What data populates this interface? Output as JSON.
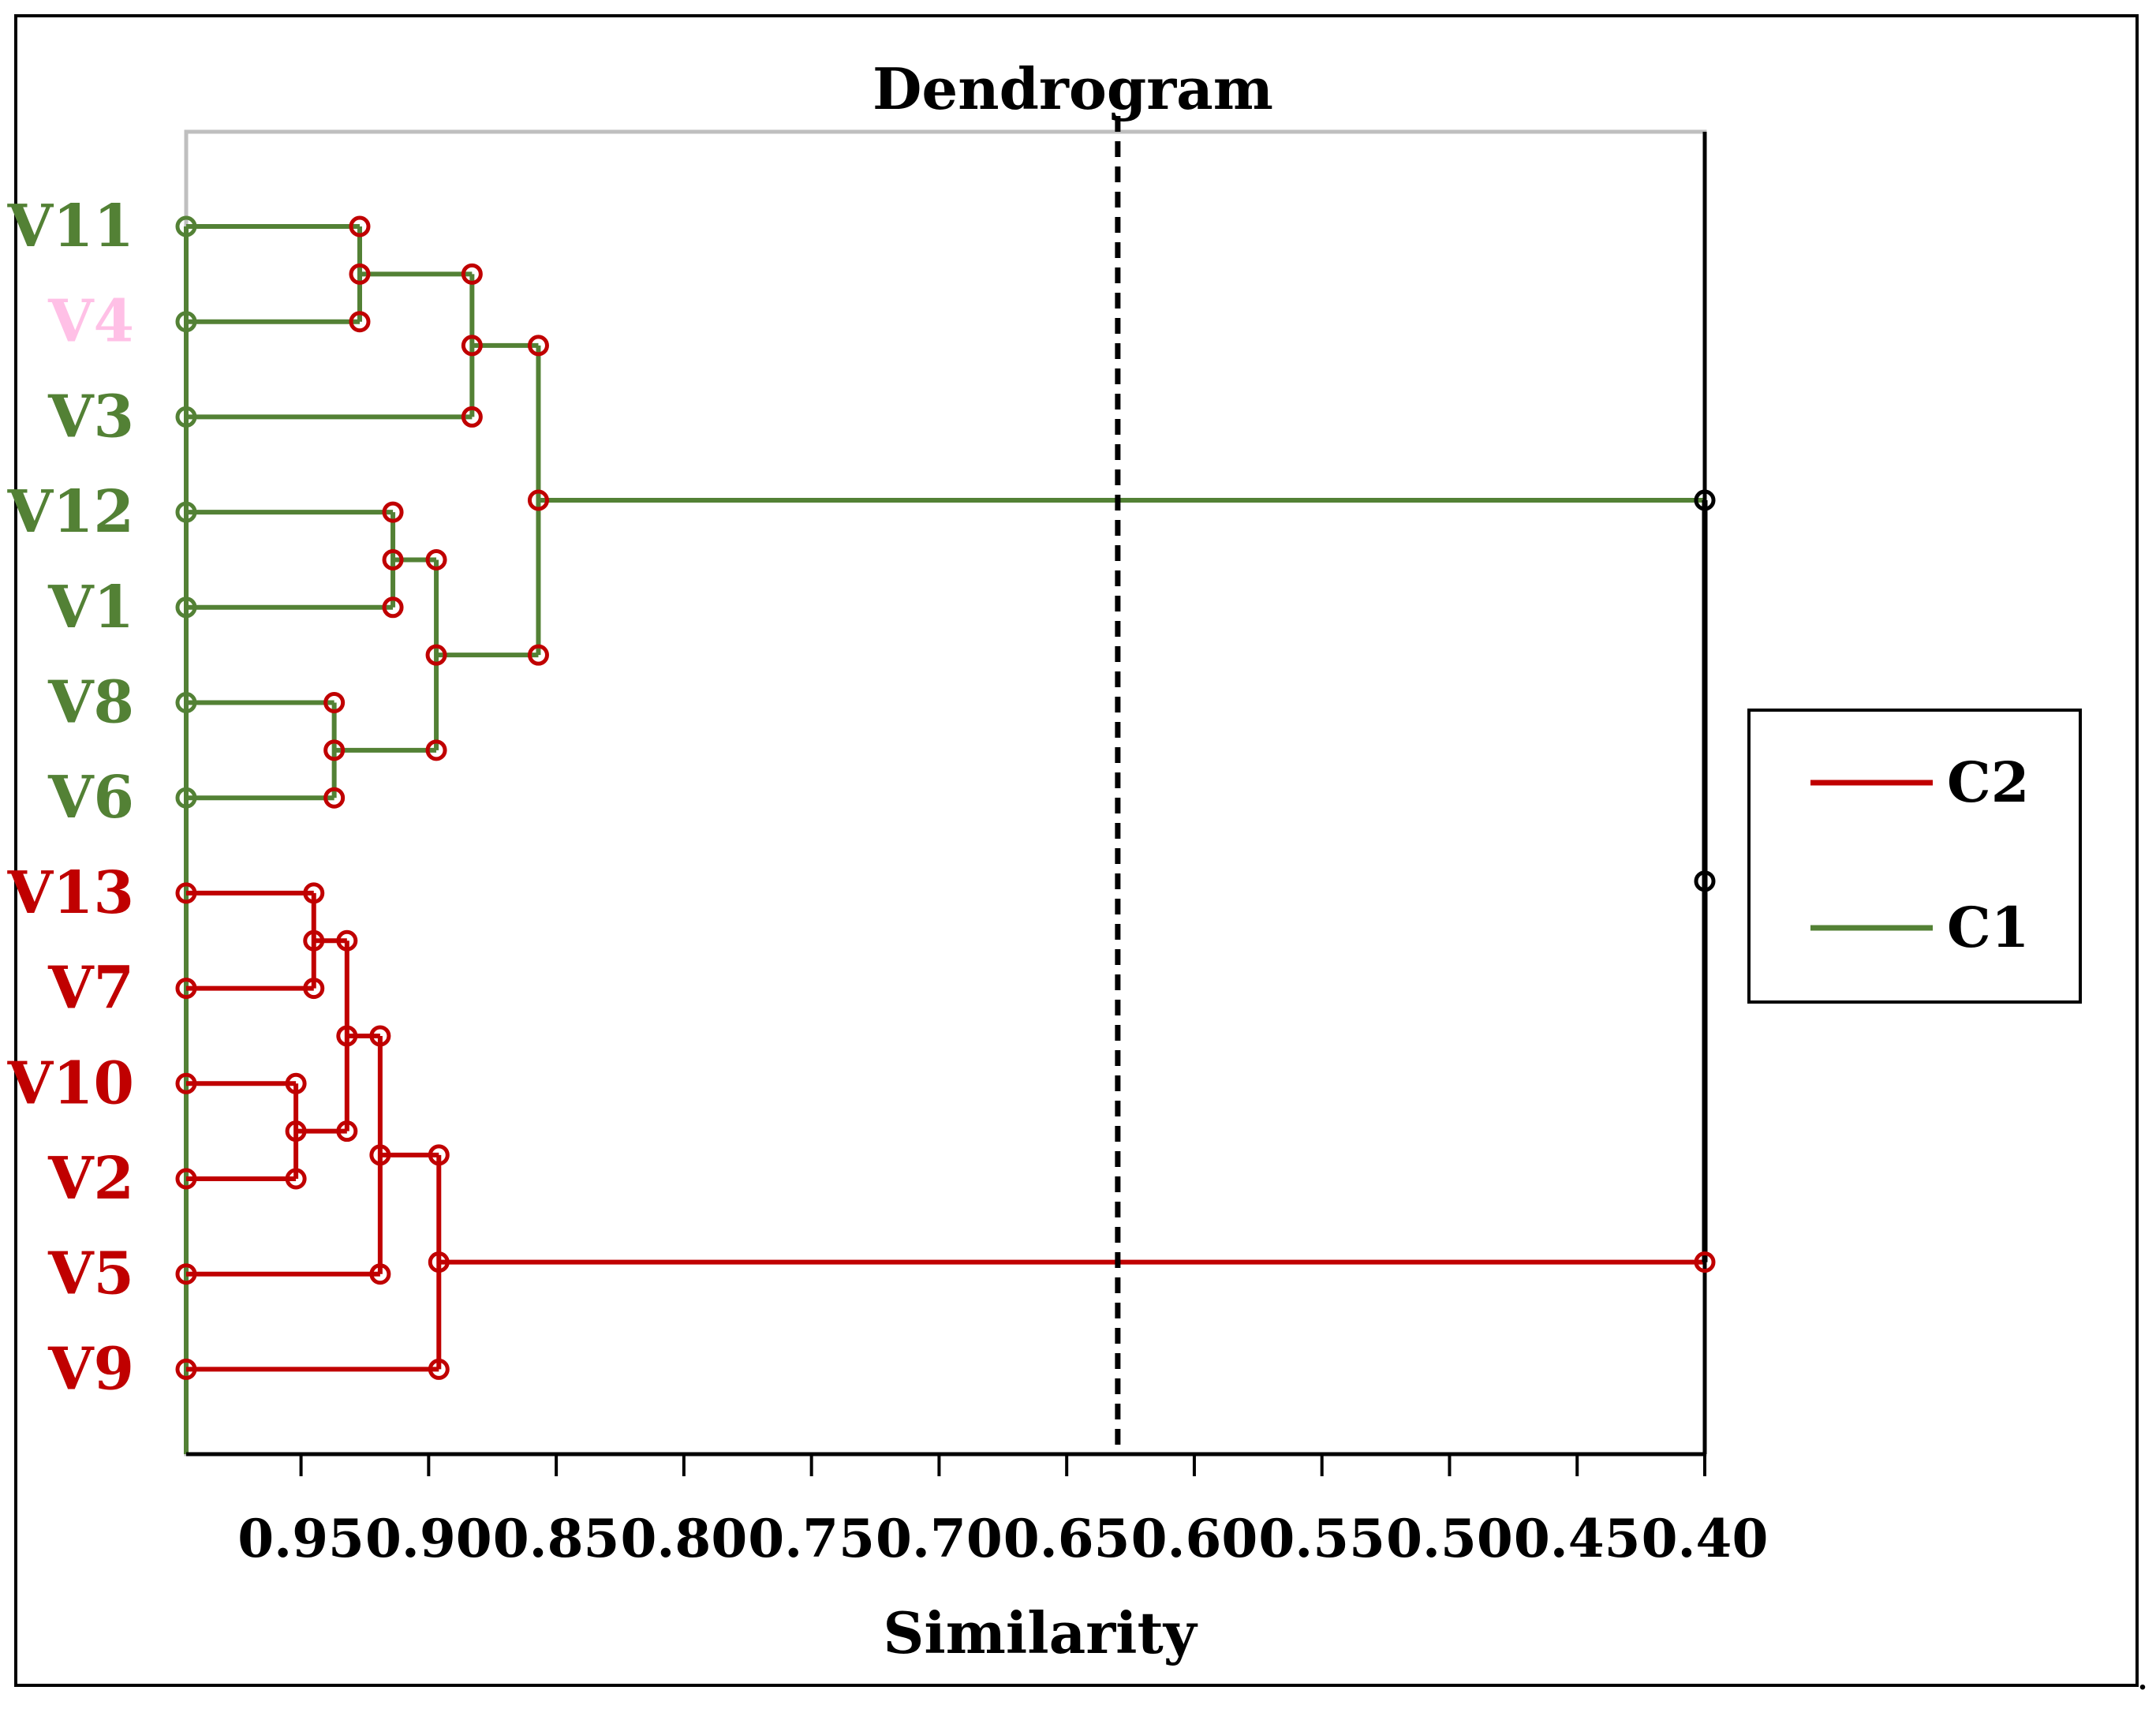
{
  "chart_data": {
    "type": "dendrogram",
    "title": "Dendrogram",
    "xlabel": "Similarity",
    "x_axis": {
      "range": [
        0.995,
        0.4
      ],
      "ticks": [
        0.95,
        0.9,
        0.85,
        0.8,
        0.75,
        0.7,
        0.65,
        0.6,
        0.55,
        0.5,
        0.45,
        0.4
      ],
      "tick_labels": [
        "0.95",
        "0.90",
        "0.85",
        "0.80",
        "0.75",
        "0.70",
        "0.65",
        "0.60",
        "0.55",
        "0.50",
        "0.45",
        "0.40"
      ]
    },
    "leaf_base": 0.995,
    "cut_line": 0.63,
    "leaves": [
      {
        "label": "V11",
        "cluster": "C1",
        "color": "#538135"
      },
      {
        "label": "V4",
        "cluster": "C1",
        "color": "#ffc0e6"
      },
      {
        "label": "V3",
        "cluster": "C1",
        "color": "#538135"
      },
      {
        "label": "V12",
        "cluster": "C1",
        "color": "#538135"
      },
      {
        "label": "V1",
        "cluster": "C1",
        "color": "#538135"
      },
      {
        "label": "V8",
        "cluster": "C1",
        "color": "#538135"
      },
      {
        "label": "V6",
        "cluster": "C1",
        "color": "#538135"
      },
      {
        "label": "V13",
        "cluster": "C2",
        "color": "#c00000"
      },
      {
        "label": "V7",
        "cluster": "C2",
        "color": "#c00000"
      },
      {
        "label": "V10",
        "cluster": "C2",
        "color": "#c00000"
      },
      {
        "label": "V2",
        "cluster": "C2",
        "color": "#c00000"
      },
      {
        "label": "V5",
        "cluster": "C2",
        "color": "#c00000"
      },
      {
        "label": "V9",
        "cluster": "C2",
        "color": "#c00000"
      }
    ],
    "merges": [
      {
        "id": "m1",
        "children": [
          "V11",
          "V4"
        ],
        "similarity": 0.927,
        "cluster": "C1"
      },
      {
        "id": "m2",
        "children": [
          "m1",
          "V3"
        ],
        "similarity": 0.883,
        "cluster": "C1"
      },
      {
        "id": "m3",
        "children": [
          "V12",
          "V1"
        ],
        "similarity": 0.914,
        "cluster": "C1"
      },
      {
        "id": "m4",
        "children": [
          "V8",
          "V6"
        ],
        "similarity": 0.937,
        "cluster": "C1"
      },
      {
        "id": "m5",
        "children": [
          "m3",
          "m4"
        ],
        "similarity": 0.897,
        "cluster": "C1"
      },
      {
        "id": "m6",
        "children": [
          "m2",
          "m5"
        ],
        "similarity": 0.857,
        "cluster": "C1"
      },
      {
        "id": "m7",
        "children": [
          "V13",
          "V7"
        ],
        "similarity": 0.945,
        "cluster": "C2"
      },
      {
        "id": "m8",
        "children": [
          "V10",
          "V2"
        ],
        "similarity": 0.952,
        "cluster": "C2"
      },
      {
        "id": "m9",
        "children": [
          "m7",
          "m8"
        ],
        "similarity": 0.932,
        "cluster": "C2"
      },
      {
        "id": "m10",
        "children": [
          "m9",
          "V5"
        ],
        "similarity": 0.919,
        "cluster": "C2"
      },
      {
        "id": "m11",
        "children": [
          "m10",
          "V9"
        ],
        "similarity": 0.896,
        "cluster": "C2"
      },
      {
        "id": "root",
        "children": [
          "m6",
          "m11"
        ],
        "similarity": 0.4,
        "cluster": "root"
      }
    ],
    "legend": {
      "position": "right",
      "entries": [
        {
          "label": "C2",
          "color": "#c00000"
        },
        {
          "label": "C1",
          "color": "#538135"
        }
      ]
    },
    "colors": {
      "C1": "#538135",
      "C2": "#c00000",
      "root": "#000000",
      "plot_border": "#bfbfbf",
      "axis": "#000000"
    }
  },
  "footer_mark": "."
}
